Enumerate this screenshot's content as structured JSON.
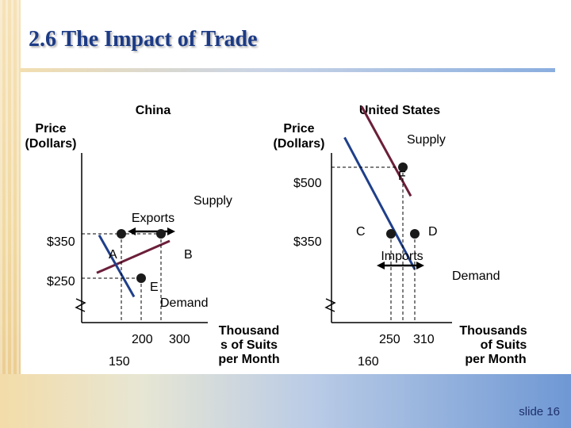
{
  "slide": {
    "title": "2.6 The Impact of Trade",
    "number": "slide 16"
  },
  "colors": {
    "supply_line": "#6b1f3a",
    "demand_line": "#1f3f8b",
    "title_text": "#1c3b86"
  },
  "chart_data": [
    {
      "type": "line",
      "title": "China",
      "ylabel": [
        "Price",
        "(Dollars)"
      ],
      "xlabel": [
        "Thousand",
        "s of Suits",
        "per Month"
      ],
      "series": [
        {
          "name": "Supply",
          "points": [
            [
              138,
              262
            ],
            [
              322,
              334
            ]
          ]
        },
        {
          "name": "Demand",
          "points": [
            [
              144,
              347
            ],
            [
              232,
              208
            ]
          ]
        }
      ],
      "points": [
        {
          "label": "A",
          "x": 200,
          "y": 350
        },
        {
          "label": "B",
          "x": 300,
          "y": 350
        },
        {
          "label": "E",
          "x": 250,
          "y": 250
        }
      ],
      "price_labels": [
        {
          "text": "$350",
          "y": 350
        },
        {
          "text": "$250",
          "y": 250
        }
      ],
      "quantity_labels": [
        {
          "text": "200",
          "x": 200
        },
        {
          "text": "300",
          "x": 300
        },
        {
          "text": "150",
          "x": 150
        }
      ],
      "arrow_label": "Exports",
      "axis_break": true
    },
    {
      "type": "line",
      "title": "United States",
      "ylabel": [
        "Price",
        "(Dollars)"
      ],
      "xlabel": [
        "Thousands",
        "of Suits",
        "per Month"
      ],
      "series": [
        {
          "name": "Supply",
          "points": [
            [
              176,
              637
            ],
            [
              300,
              435
            ]
          ]
        },
        {
          "name": "Demand",
          "points": [
            [
              133,
              567
            ],
            [
              310,
              270
            ]
          ]
        }
      ],
      "points": [
        {
          "label": "F",
          "x": 280,
          "y": 500
        },
        {
          "label": "C",
          "x": 250,
          "y": 350
        },
        {
          "label": "D",
          "x": 310,
          "y": 350
        }
      ],
      "price_labels": [
        {
          "text": "$500",
          "y": 500
        },
        {
          "text": "$350",
          "y": 350
        }
      ],
      "quantity_labels": [
        {
          "text": "250",
          "x": 250
        },
        {
          "text": "310",
          "x": 310
        },
        {
          "text": "160",
          "x": 160
        }
      ],
      "arrow_label": "Imports",
      "axis_break": true
    }
  ]
}
